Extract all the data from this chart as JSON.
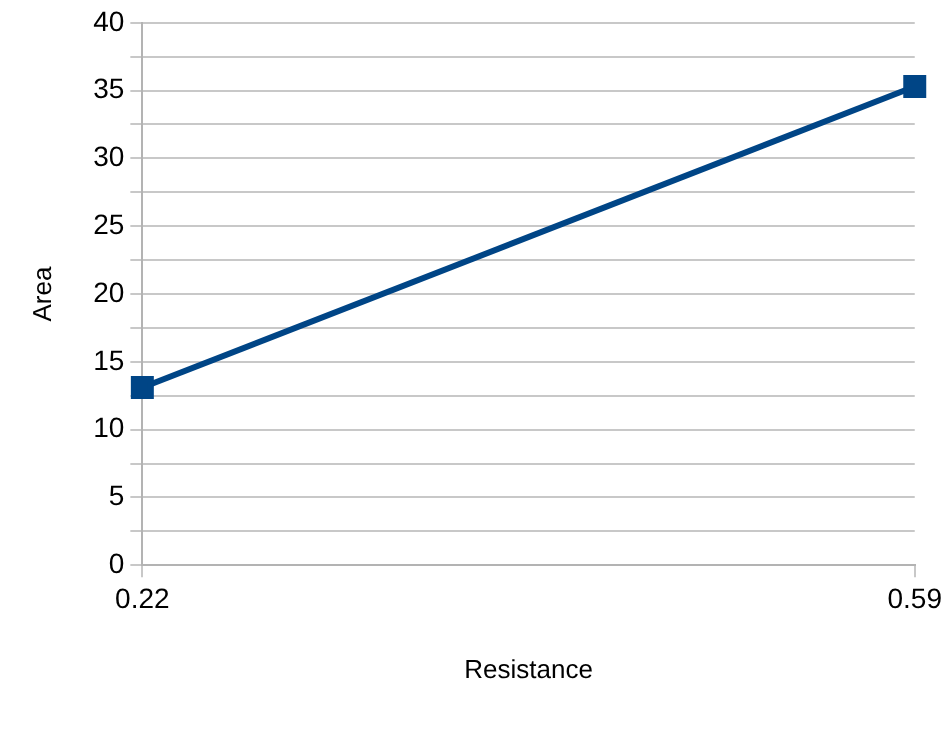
{
  "chart_data": {
    "type": "line",
    "xlabel": "Resistance",
    "ylabel": "Area",
    "x": [
      0.22,
      0.59
    ],
    "series": [
      {
        "color": "#004586",
        "values": [
          13.1,
          35.3
        ]
      }
    ],
    "xlim": [
      0.22,
      0.59
    ],
    "xticks": [
      0.22,
      0.59
    ],
    "ylim": [
      0,
      40
    ],
    "yticks": [
      0,
      {
        "value": 2.5,
        "label": null
      },
      5,
      {
        "value": 7.5,
        "label": null
      },
      10,
      {
        "value": 12.5,
        "label": null
      },
      15,
      {
        "value": 17.5,
        "label": null
      },
      20,
      {
        "value": 22.5,
        "label": null
      },
      25,
      {
        "value": 27.5,
        "label": null
      },
      30,
      {
        "value": 32.5,
        "label": null
      },
      35,
      {
        "value": 37.5,
        "label": null
      },
      40
    ],
    "grid": "y",
    "legend": false,
    "marker": "square",
    "line_style": "solid"
  }
}
